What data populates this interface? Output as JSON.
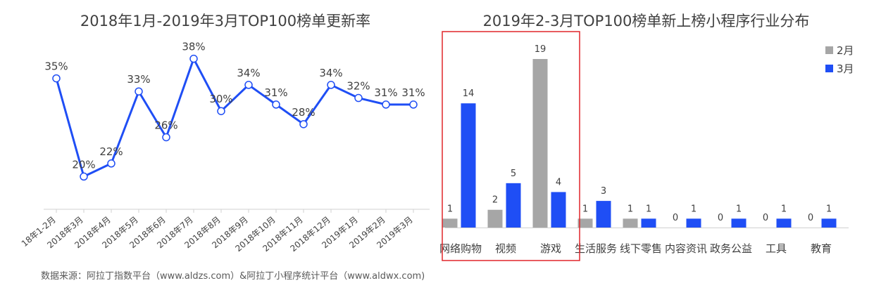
{
  "charts_text": {
    "left_title": "2018年1月-2019年3月TOP100榜单更新率",
    "right_title": "2019年2-3月TOP100榜单新上榜小程序行业分布",
    "source": "数据来源：阿拉丁指数平台（www.aldzs.com）&阿拉丁小程序统计平台（www.aldwx.com)"
  },
  "colors": {
    "line": "#1f4ef5",
    "bar_feb": "#a6a6a6",
    "bar_mar": "#1f4ef5",
    "highlight_box": "#e0262a",
    "text": "#404040"
  },
  "chart_data": [
    {
      "type": "line",
      "title": "2018年1月-2019年3月TOP100榜单更新率",
      "categories": [
        "18年1-2月",
        "2018年3月",
        "2018年4月",
        "2018年5月",
        "2018年6月",
        "2018年7月",
        "2018年8月",
        "2018年9月",
        "2018年10月",
        "2018年11月",
        "2018年12月",
        "2019年1月",
        "2019年2月",
        "2019年3月"
      ],
      "series": [
        {
          "values": [
            35,
            20,
            22,
            33,
            26,
            38,
            30,
            34,
            31,
            28,
            34,
            32,
            31,
            31
          ],
          "labels": [
            "35%",
            "20%",
            "22%",
            "33%",
            "26%",
            "38%",
            "30%",
            "34%",
            "31%",
            "28%",
            "34%",
            "32%",
            "31%",
            "31%"
          ]
        }
      ],
      "ylim": [
        15,
        40
      ],
      "grid": false
    },
    {
      "type": "bar",
      "title": "2019年2-3月TOP100榜单新上榜小程序行业分布",
      "categories": [
        "网络购物",
        "视频",
        "游戏",
        "生活服务",
        "线下零售",
        "内容资讯",
        "政务公益",
        "工具",
        "教育"
      ],
      "series": [
        {
          "name": "2月",
          "values": [
            1,
            2,
            19,
            1,
            1,
            0,
            0,
            0,
            0
          ]
        },
        {
          "name": "3月",
          "values": [
            14,
            5,
            4,
            3,
            1,
            1,
            1,
            1,
            1
          ]
        }
      ],
      "ylim": [
        0,
        20
      ],
      "legend": "top-right",
      "grid": false
    }
  ]
}
